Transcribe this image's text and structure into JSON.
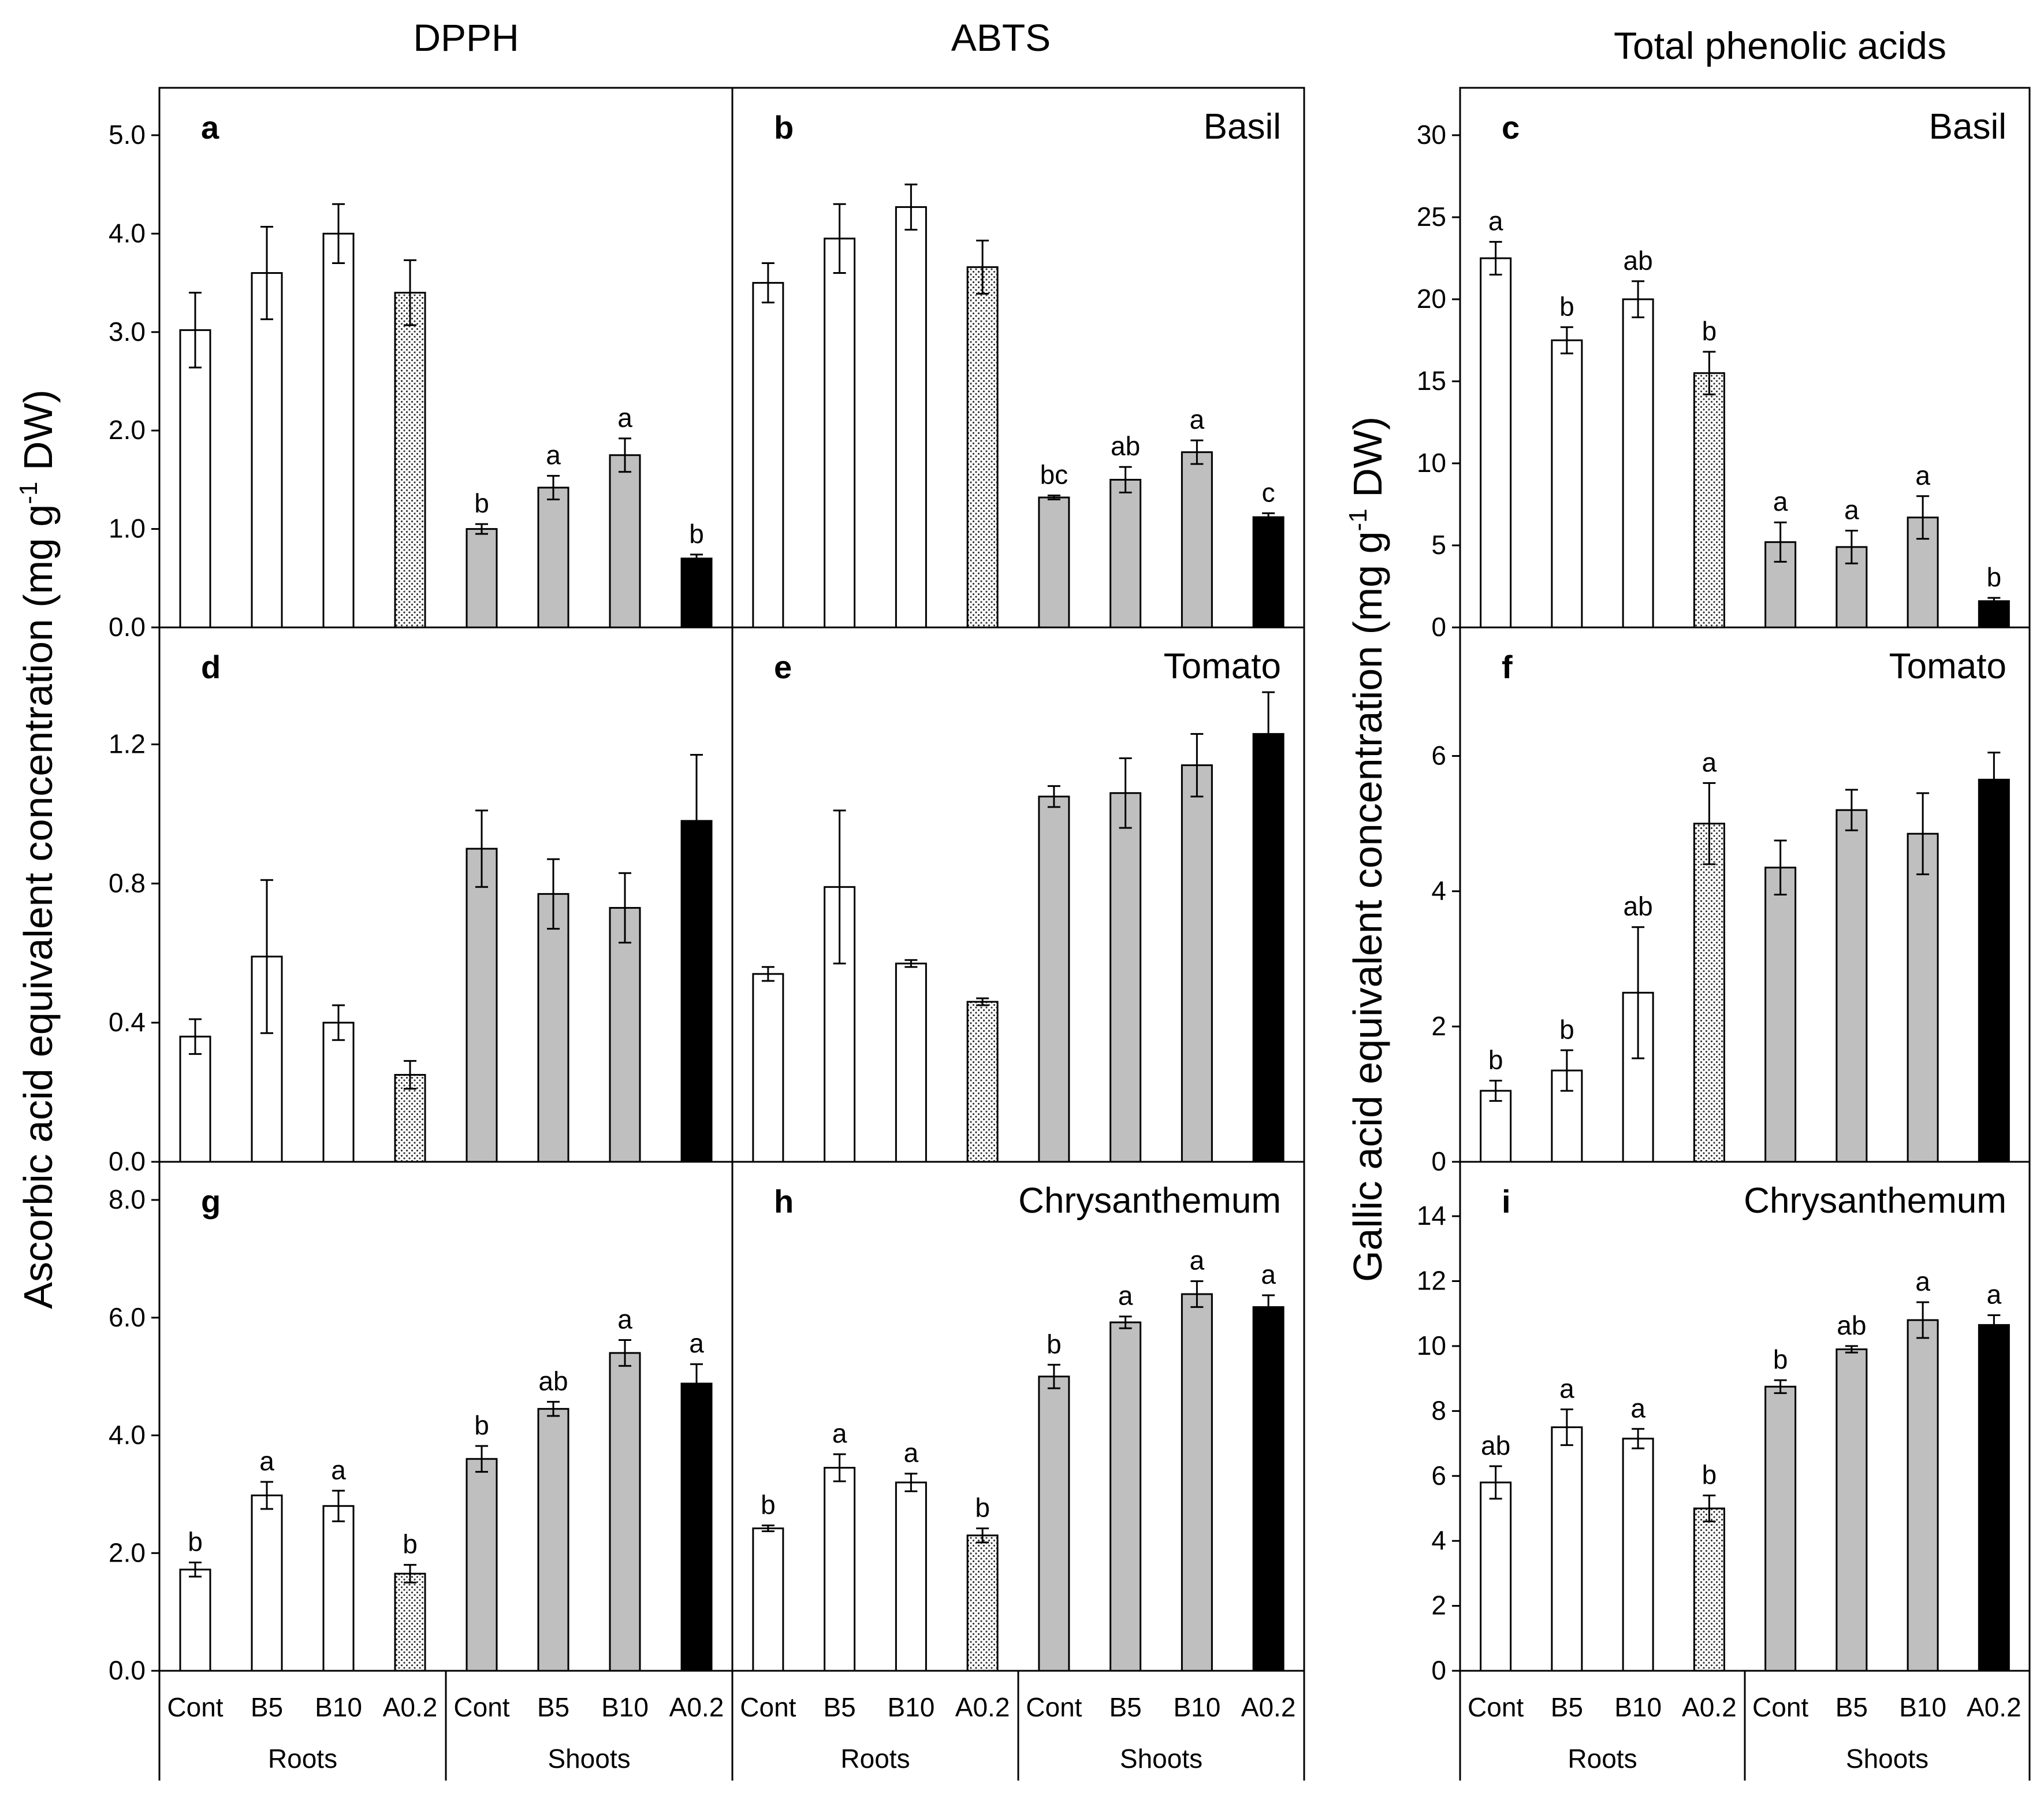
{
  "figure": {
    "column_titles": [
      "DPPH",
      "ABTS",
      "Total phenolic acids"
    ],
    "left_ylabel_pre": "Ascorbic acid equivalent concentration (mg g",
    "left_ylabel_sup": "-1",
    "left_ylabel_post": " DW)",
    "right_ylabel_pre": "Gallic acid equivalent concentration (mg g",
    "right_ylabel_sup": "-1",
    "right_ylabel_post": " DW)",
    "x_categories": [
      "Cont",
      "B5",
      "B10",
      "A0.2",
      "Cont",
      "B5",
      "B10",
      "A0.2"
    ],
    "group_labels": [
      "Roots",
      "Shoots"
    ],
    "bar_styles": [
      "open",
      "open",
      "open",
      "dotted",
      "grey",
      "grey",
      "grey",
      "black"
    ],
    "colors": {
      "open": "#ffffff",
      "grey": "#bfbfbf",
      "black": "#000000",
      "dotted_bg": "#ffffff",
      "dotted_dots": "#333333"
    }
  },
  "chart_data": [
    {
      "id": "a",
      "type": "bar",
      "panel_label": "a",
      "crop": "",
      "ylim": [
        0,
        5
      ],
      "yticks": [
        "0.0",
        "1.0",
        "2.0",
        "3.0",
        "4.0",
        "5.0"
      ],
      "show_yaxis": true,
      "values": [
        3.02,
        3.6,
        4.0,
        3.4,
        1.0,
        1.42,
        1.75,
        0.7
      ],
      "errors": [
        0.38,
        0.47,
        0.3,
        0.33,
        0.05,
        0.12,
        0.17,
        0.04
      ],
      "letters": [
        "",
        "",
        "",
        "",
        "b",
        "a",
        "a",
        "b"
      ]
    },
    {
      "id": "b",
      "type": "bar",
      "panel_label": "b",
      "crop": "Basil",
      "ylim": [
        0,
        5
      ],
      "yticks": [],
      "show_yaxis": false,
      "values": [
        3.5,
        3.95,
        4.27,
        3.66,
        1.32,
        1.5,
        1.78,
        1.12
      ],
      "errors": [
        0.2,
        0.35,
        0.23,
        0.27,
        0.02,
        0.13,
        0.12,
        0.04
      ],
      "letters": [
        "",
        "",
        "",
        "",
        "bc",
        "ab",
        "a",
        "c"
      ]
    },
    {
      "id": "c",
      "type": "bar",
      "panel_label": "c",
      "crop": "Basil",
      "ylim": [
        0,
        30
      ],
      "yticks": [
        "0",
        "5",
        "10",
        "15",
        "20",
        "25",
        "30"
      ],
      "show_yaxis": true,
      "values": [
        22.5,
        17.5,
        20.0,
        15.5,
        5.2,
        4.9,
        6.7,
        1.6
      ],
      "errors": [
        1.0,
        0.8,
        1.1,
        1.3,
        1.2,
        1.0,
        1.3,
        0.2
      ],
      "letters": [
        "a",
        "b",
        "ab",
        "b",
        "a",
        "a",
        "a",
        "b"
      ]
    },
    {
      "id": "d",
      "type": "bar",
      "panel_label": "d",
      "crop": "",
      "ylim": [
        0,
        1.4
      ],
      "yticks": [
        "0.0",
        "0.4",
        "0.8",
        "1.2"
      ],
      "show_yaxis": true,
      "values": [
        0.36,
        0.59,
        0.4,
        0.25,
        0.9,
        0.77,
        0.73,
        0.98
      ],
      "errors": [
        0.05,
        0.22,
        0.05,
        0.04,
        0.11,
        0.1,
        0.1,
        0.19
      ],
      "letters": [
        "",
        "",
        "",
        "",
        "",
        "",
        "",
        ""
      ]
    },
    {
      "id": "e",
      "type": "bar",
      "panel_label": "e",
      "crop": "Tomato",
      "ylim": [
        0,
        1.4
      ],
      "yticks": [],
      "show_yaxis": false,
      "values": [
        0.54,
        0.79,
        0.57,
        0.46,
        1.05,
        1.06,
        1.14,
        1.23
      ],
      "errors": [
        0.02,
        0.22,
        0.01,
        0.01,
        0.03,
        0.1,
        0.09,
        0.12
      ],
      "letters": [
        "",
        "",
        "",
        "",
        "",
        "",
        "",
        ""
      ]
    },
    {
      "id": "f",
      "type": "bar",
      "panel_label": "f",
      "crop": "Tomato",
      "ylim": [
        0,
        7.2
      ],
      "yticks": [
        "0",
        "2",
        "4",
        "6"
      ],
      "show_yaxis": true,
      "values": [
        1.05,
        1.35,
        2.5,
        5.0,
        4.35,
        5.2,
        4.85,
        5.65
      ],
      "errors": [
        0.15,
        0.3,
        0.97,
        0.6,
        0.4,
        0.3,
        0.6,
        0.4
      ],
      "letters": [
        "b",
        "b",
        "ab",
        "a",
        "",
        "",
        "",
        ""
      ]
    },
    {
      "id": "g",
      "type": "bar",
      "panel_label": "g",
      "crop": "",
      "ylim": [
        0,
        8
      ],
      "yticks": [
        "0.0",
        "2.0",
        "4.0",
        "6.0",
        "8.0"
      ],
      "show_yaxis": true,
      "values": [
        1.72,
        2.98,
        2.8,
        1.65,
        3.6,
        4.45,
        5.4,
        4.88
      ],
      "errors": [
        0.12,
        0.23,
        0.26,
        0.15,
        0.22,
        0.12,
        0.22,
        0.33
      ],
      "letters": [
        "b",
        "a",
        "a",
        "b",
        "b",
        "ab",
        "a",
        "a"
      ]
    },
    {
      "id": "h",
      "type": "bar",
      "panel_label": "h",
      "crop": "Chrysanthemum",
      "ylim": [
        0,
        8
      ],
      "yticks": [],
      "show_yaxis": false,
      "values": [
        2.42,
        3.45,
        3.2,
        2.3,
        5.0,
        5.92,
        6.4,
        6.18
      ],
      "errors": [
        0.05,
        0.23,
        0.15,
        0.12,
        0.2,
        0.1,
        0.22,
        0.2
      ],
      "letters": [
        "b",
        "a",
        "a",
        "b",
        "b",
        "a",
        "a",
        "a"
      ]
    },
    {
      "id": "i",
      "type": "bar",
      "panel_label": "i",
      "crop": "Chrysanthemum",
      "ylim": [
        0,
        14.5
      ],
      "yticks": [
        "0",
        "2",
        "4",
        "6",
        "8",
        "10",
        "12",
        "14"
      ],
      "show_yaxis": true,
      "values": [
        5.8,
        7.5,
        7.15,
        5.0,
        8.75,
        9.9,
        10.8,
        10.65
      ],
      "errors": [
        0.5,
        0.55,
        0.3,
        0.4,
        0.2,
        0.1,
        0.55,
        0.3
      ],
      "letters": [
        "ab",
        "a",
        "a",
        "b",
        "b",
        "ab",
        "a",
        "a"
      ]
    }
  ]
}
